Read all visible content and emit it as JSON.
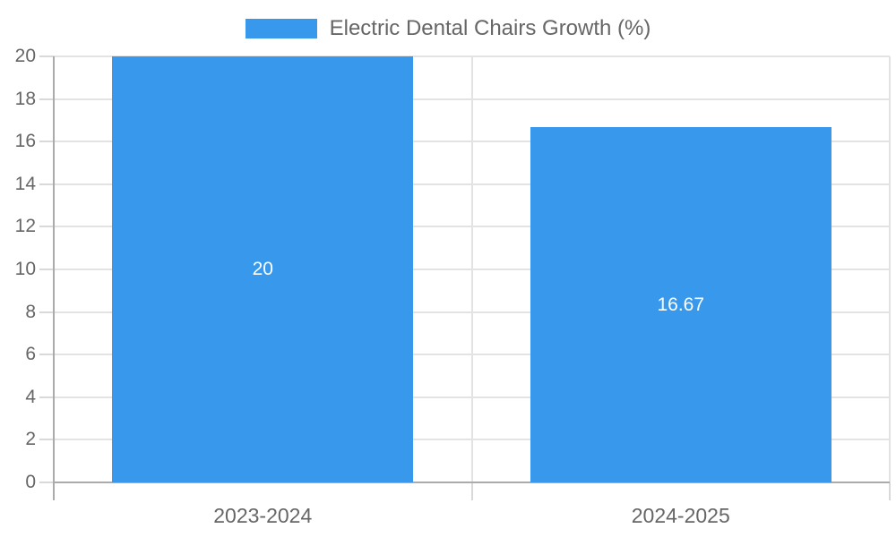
{
  "legend": {
    "label": "Electric Dental Chairs Growth (%)"
  },
  "colors": {
    "bar": "#3899EC",
    "grid": "#e3e3e3",
    "axis": "#ababab",
    "tick": "#d9d9d9",
    "text": "#666666",
    "bar_label": "#ffffff",
    "background": "#ffffff"
  },
  "chart_data": {
    "type": "bar",
    "categories": [
      "2023-2024",
      "2024-2025"
    ],
    "values": [
      20,
      16.67
    ],
    "value_labels": [
      "20",
      "16.67"
    ],
    "series": [
      {
        "name": "Electric Dental Chairs Growth (%)",
        "values": [
          20,
          16.67
        ]
      }
    ],
    "title": "",
    "xlabel": "",
    "ylabel": "",
    "ylim": [
      0,
      20
    ],
    "ytick_step": 2,
    "yticks": [
      0,
      2,
      4,
      6,
      8,
      10,
      12,
      14,
      16,
      18,
      20
    ],
    "grid": true,
    "legend_position": "top"
  }
}
